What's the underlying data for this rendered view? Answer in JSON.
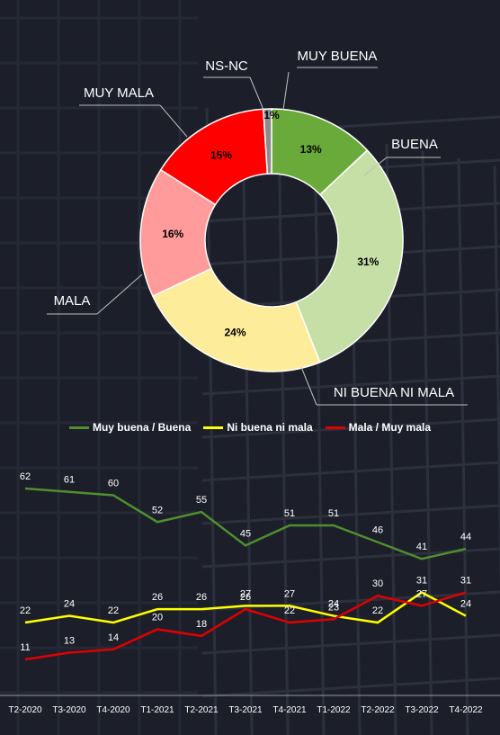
{
  "colors": {
    "background": "#1c1f2a",
    "muy_buena": "#6aaa3a",
    "buena": "#c6dfa6",
    "ni_buena_ni_mala": "#fdec9a",
    "mala": "#ff9b9b",
    "muy_mala": "#ff0000",
    "ns_nc": "#8c8c8c",
    "line_green": "#4f8f2f",
    "line_yellow": "#ffff00",
    "line_red": "#e00000"
  },
  "chart_data": [
    {
      "type": "pie",
      "variant": "donut",
      "categories": [
        "MUY BUENA",
        "BUENA",
        "NI BUENA NI MALA",
        "MALA",
        "MUY MALA",
        "NS-NC"
      ],
      "values": [
        13,
        31,
        24,
        16,
        15,
        1
      ],
      "value_labels": [
        "13%",
        "31%",
        "24%",
        "16%",
        "15%",
        "1%"
      ],
      "value_label_extra": "1%"
    },
    {
      "type": "line",
      "categories": [
        "T2-2020",
        "T3-2020",
        "T4-2020",
        "T1-2021",
        "T2-2021",
        "T3-2021",
        "T4-2021",
        "T1-2022",
        "T2-2022",
        "T3-2022",
        "T4-2022"
      ],
      "series": [
        {
          "name": "Muy buena / Buena",
          "values": [
            62,
            61,
            60,
            52,
            55,
            45,
            51,
            51,
            46,
            41,
            44
          ]
        },
        {
          "name": "Ni buena ni mala",
          "values": [
            22,
            24,
            22,
            26,
            26,
            27,
            27,
            24,
            22,
            31,
            24
          ]
        },
        {
          "name": "Mala / Muy mala",
          "values": [
            11,
            13,
            14,
            20,
            18,
            26,
            22,
            23,
            30,
            27,
            31
          ]
        }
      ],
      "legend_position": "top",
      "grid": false
    }
  ]
}
